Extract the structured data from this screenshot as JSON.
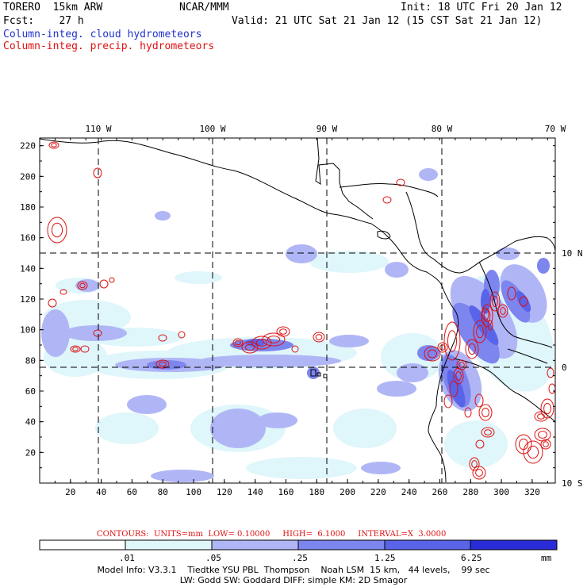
{
  "header": {
    "model": "TORERO  15km ARW",
    "org": "NCAR/MMM",
    "init": "Init: 18 UTC Fri 20 Jan 12",
    "fcst": "Fcst:    27 h",
    "valid": "Valid: 21 UTC Sat 21 Jan 12 (15 CST Sat 21 Jan 12)",
    "legend_cloud": "Column-integ. cloud hydrometeors",
    "legend_precip": "Column-integ. precip. hydrometeors"
  },
  "colors": {
    "cloud_lightest": "#dff6fb",
    "cloud_light": "#b0b6f5",
    "cloud_mid": "#7d85ee",
    "cloud_dark": "#5a64e8",
    "cloud_darkest": "#2a2cd8",
    "precip_contour": "#dd1111",
    "coast": "#000000",
    "grid": "#000000"
  },
  "axes": {
    "top_lon_labels": [
      "110 W",
      "100 W",
      "90 W",
      "80 W",
      "70 W"
    ],
    "right_lat_labels": [
      "10 N",
      "0",
      "10 S"
    ],
    "left_y_ticks": [
      "220",
      "200",
      "180",
      "160",
      "140",
      "120",
      "100",
      "80",
      "60",
      "40",
      "20"
    ],
    "bottom_x_ticks": [
      "20",
      "40",
      "60",
      "80",
      "100",
      "120",
      "140",
      "160",
      "180",
      "200",
      "220",
      "240",
      "260",
      "280",
      "300",
      "320"
    ]
  },
  "contours": {
    "line": "CONTOURS:  UNITS=mm  LOW= 0.10000     HIGH=  6.1000     INTERVAL=X  3.0000"
  },
  "colorbar": {
    "levels": [
      ".01",
      ".05",
      ".25",
      "1.25",
      "6.25"
    ],
    "unit": "mm"
  },
  "footer": {
    "line1": "Model Info: V3.3.1    Tiedtke YSU PBL  Thompson    Noah LSM  15 km,   44 levels,    99 sec",
    "line2": "LW: Godd SW: Goddard DIFF: simple KM: 2D Smagor"
  }
}
